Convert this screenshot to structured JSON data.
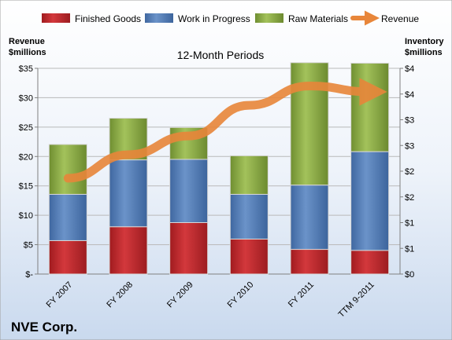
{
  "chart_data": {
    "type": "bar",
    "subtitle": "12-Month Periods",
    "company": "NVE Corp.",
    "left_axis_title": [
      "Revenue",
      "$millions"
    ],
    "right_axis_title": [
      "Inventory",
      "$millions"
    ],
    "categories": [
      "FY 2007",
      "FY 2008",
      "FY 2009",
      "FY 2010",
      "FY 2011",
      "TTM 9-2011"
    ],
    "stacked": true,
    "series": [
      {
        "name": "Finished Goods",
        "axis": "right",
        "color": "#c0262a",
        "values": [
          0.65,
          0.92,
          1.0,
          0.68,
          0.48,
          0.46
        ]
      },
      {
        "name": "Work in Progress",
        "axis": "right",
        "color": "#4f7dbc",
        "values": [
          0.9,
          1.3,
          1.23,
          0.87,
          1.25,
          1.92
        ]
      },
      {
        "name": "Raw Materials",
        "axis": "right",
        "color": "#8fb04a",
        "values": [
          0.97,
          0.81,
          0.62,
          0.75,
          2.38,
          1.72
        ]
      },
      {
        "name": "Revenue",
        "axis": "left",
        "type": "line",
        "color": "#e8863a",
        "values": [
          16.3,
          20.3,
          23.5,
          28.7,
          32.0,
          31.0
        ]
      }
    ],
    "left_axis": {
      "min": 0,
      "max": 35,
      "step": 5,
      "tick_labels": [
        "$-",
        "$5",
        "$10",
        "$15",
        "$20",
        "$25",
        "$30",
        "$35"
      ]
    },
    "right_axis": {
      "min": 0,
      "max": 4,
      "step": 0.5,
      "tick_labels": [
        "$0",
        "$1",
        "$1",
        "$2",
        "$2",
        "$3",
        "$3",
        "$4",
        "$4"
      ]
    },
    "grid": true,
    "legend_position": "top"
  }
}
